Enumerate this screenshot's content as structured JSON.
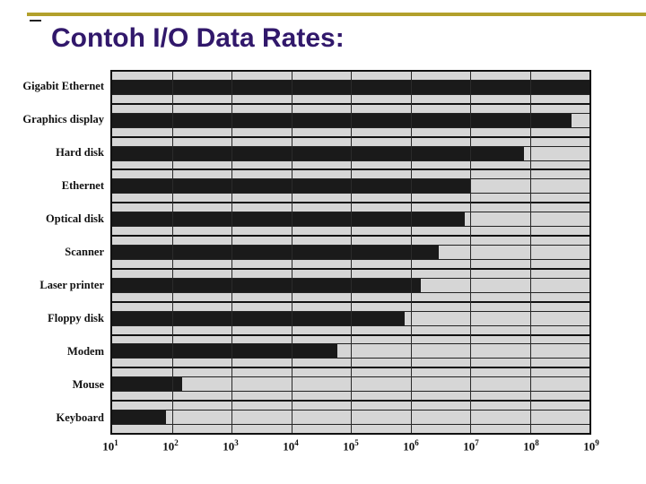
{
  "slide": {
    "title": "Contoh I/O Data Rates:",
    "title_color": "#31186B",
    "accent_rule_color": "#B2A02C"
  },
  "chart_data": {
    "type": "bar",
    "orientation": "horizontal",
    "title": "Contoh I/O Data Rates:",
    "categories": [
      "Gigabit Ethernet",
      "Graphics display",
      "Hard disk",
      "Ethernet",
      "Optical disk",
      "Scanner",
      "Laser printer",
      "Floppy disk",
      "Modem",
      "Mouse",
      "Keyboard"
    ],
    "values": [
      1000000000,
      500000000,
      80000000,
      10000000,
      8000000,
      3000000,
      1500000,
      800000,
      60000,
      150,
      80
    ],
    "x_scale": "log10",
    "xlim": [
      10,
      1000000000
    ],
    "x_ticks": [
      "10^1",
      "10^2",
      "10^3",
      "10^4",
      "10^5",
      "10^6",
      "10^7",
      "10^8",
      "10^9"
    ],
    "grid": "vertical-decade-lines",
    "legend": "none",
    "bar_color": "#1a1a1a",
    "row_bg_color": "#d6d6d6",
    "gridline_color": "#2a2a2a"
  }
}
